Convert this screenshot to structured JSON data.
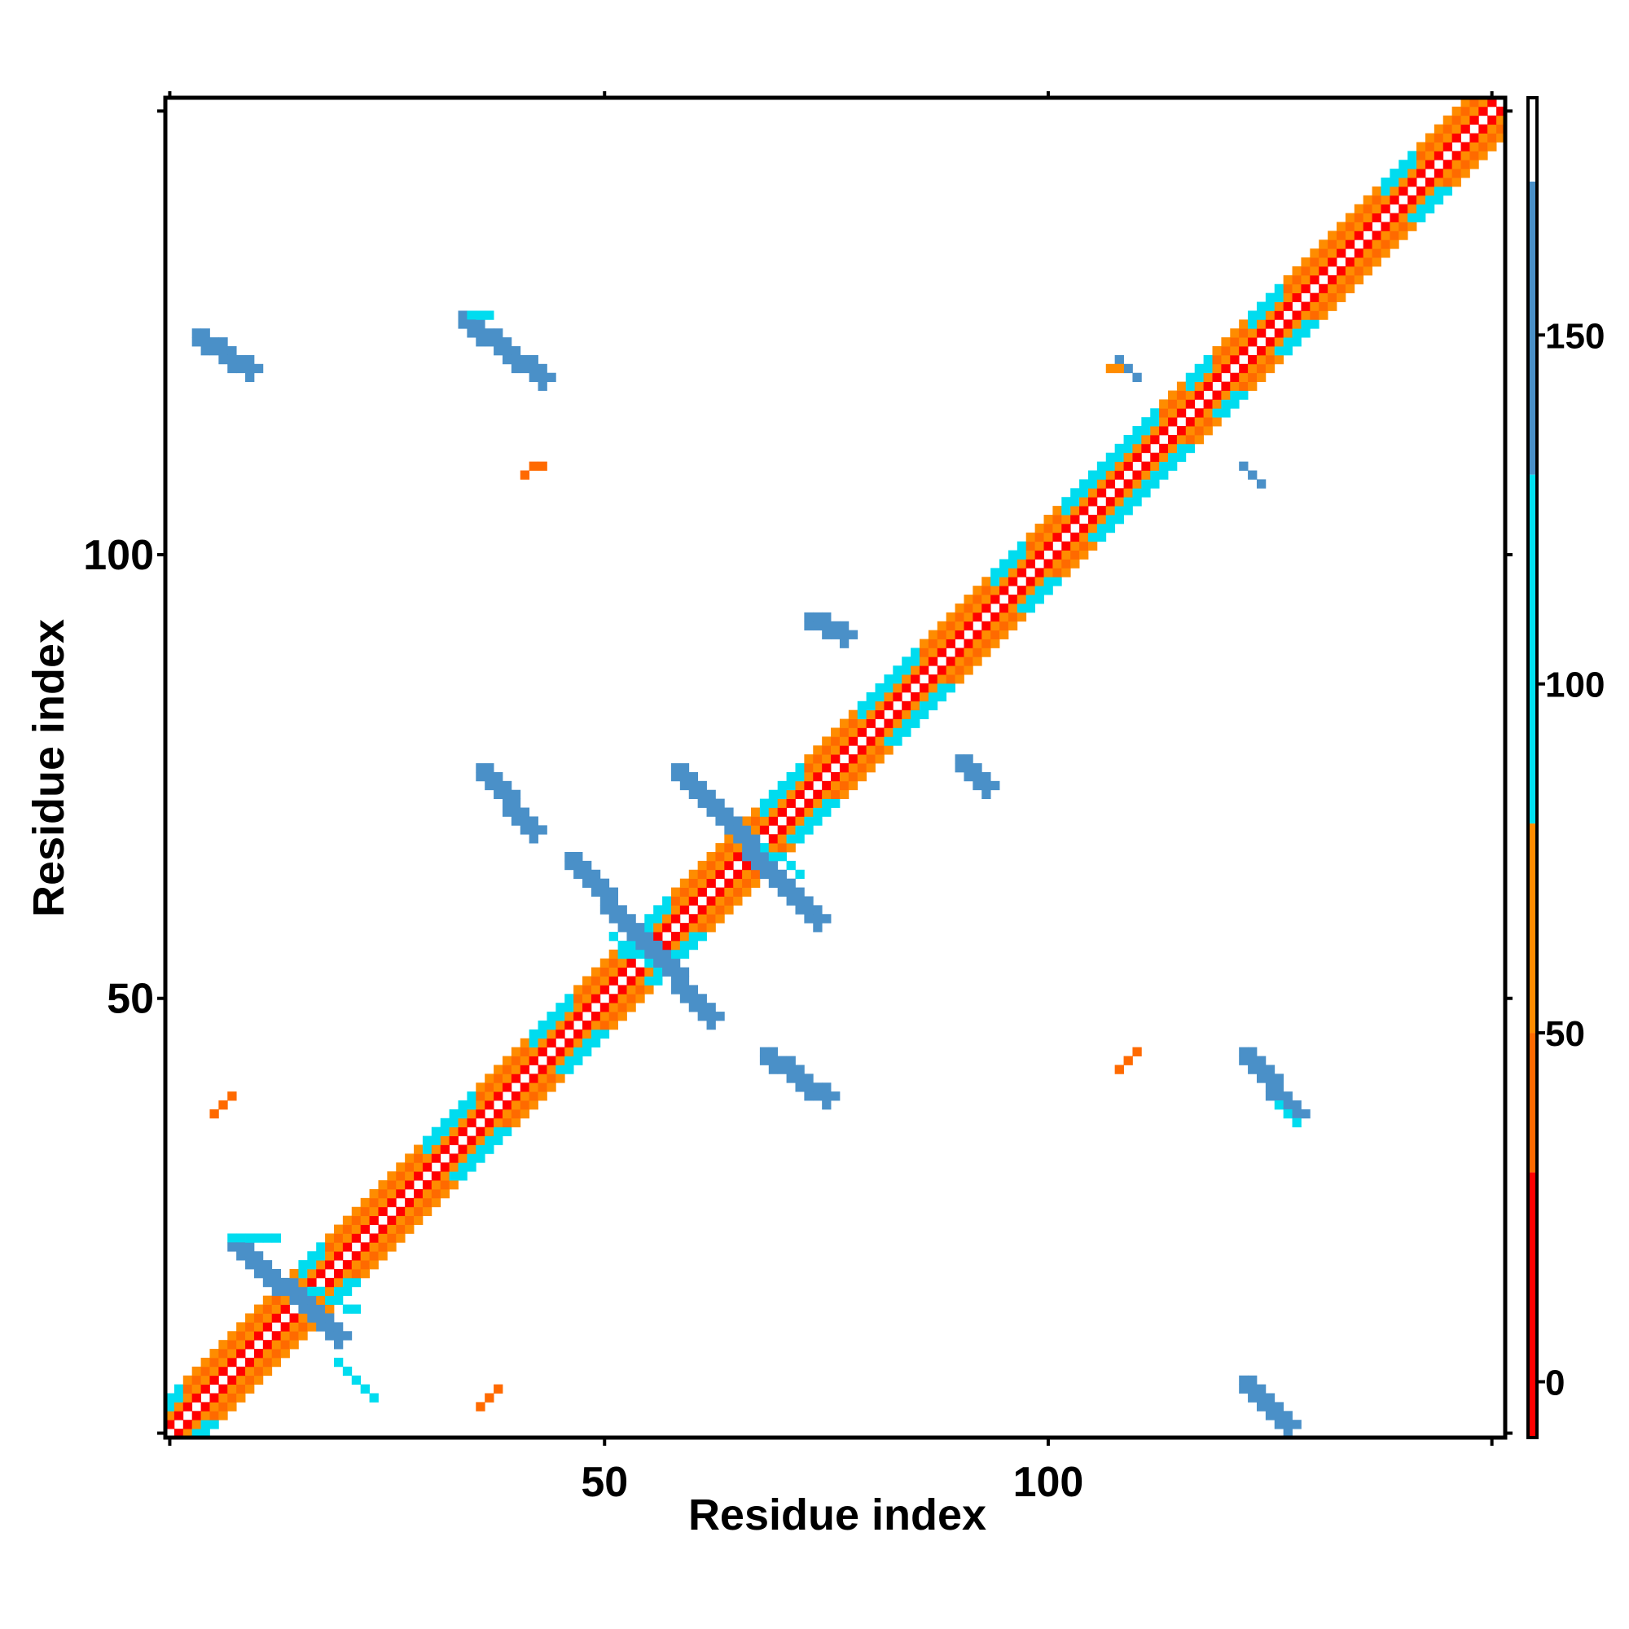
{
  "chart_data": {
    "type": "heatmap",
    "title": "",
    "xlabel": "Residue index",
    "ylabel": "Residue index",
    "n_residues": 151,
    "xlim": [
      0.5,
      151.5
    ],
    "ylim": [
      0.5,
      151.5
    ],
    "x_ticks": [
      50,
      100
    ],
    "y_ticks": [
      50,
      100
    ],
    "x_tick_labels": [
      "50",
      "100"
    ],
    "y_tick_labels": [
      "50",
      "100"
    ],
    "grid": false,
    "legend": "colorbar-right",
    "colorbar": {
      "range": [
        -8,
        184
      ],
      "ticks": [
        0,
        50,
        100,
        150
      ],
      "tick_labels": [
        "0",
        "50",
        "100",
        "150"
      ],
      "bands": [
        {
          "from": -8,
          "to": 30,
          "color": "#ff0000"
        },
        {
          "from": 30,
          "to": 50,
          "color": "#ff6a00"
        },
        {
          "from": 50,
          "to": 80,
          "color": "#ff8c00"
        },
        {
          "from": 80,
          "to": 130,
          "color": "#00e0f0"
        },
        {
          "from": 130,
          "to": 172,
          "color": "#4a90c8"
        },
        {
          "from": 172,
          "to": 184,
          "color": "#ffffff"
        }
      ]
    },
    "color_scale": {
      "red": "#ff0000",
      "dark_orange": "#ff6a00",
      "orange": "#ff8c00",
      "cyan": "#00dcef",
      "steelblue": "#4a90c8",
      "light_blue": "#36b2e0"
    },
    "diagonal_band": {
      "description": "near-diagonal contacts |i-j| <= 4",
      "color_by_distance": {
        "1": "red",
        "2": "orange",
        "3": "dark_orange",
        "4": "orange"
      }
    },
    "segments": [
      {
        "x": [
          4,
          10
        ],
        "y": [
          125,
          121
        ],
        "color": "steelblue"
      },
      {
        "x": [
          34,
          43
        ],
        "y": [
          127,
          120
        ],
        "color": "steelblue"
      },
      {
        "x": [
          35,
          37
        ],
        "y": [
          127,
          127
        ],
        "color": "cyan"
      },
      {
        "x": [
          41,
          43
        ],
        "y": [
          109,
          110
        ],
        "color": "dark_orange"
      },
      {
        "x": [
          108,
          110
        ],
        "y": [
          122,
          120
        ],
        "color": "steelblue"
      },
      {
        "x": [
          107,
          108
        ],
        "y": [
          121,
          121
        ],
        "color": "orange"
      },
      {
        "x": [
          122,
          124
        ],
        "y": [
          110,
          108
        ],
        "color": "steelblue"
      },
      {
        "x": [
          73,
          77
        ],
        "y": [
          93,
          91
        ],
        "color": "steelblue"
      },
      {
        "x": [
          90,
          93
        ],
        "y": [
          77,
          74
        ],
        "color": "steelblue"
      },
      {
        "x": [
          36,
          42
        ],
        "y": [
          76,
          69
        ],
        "color": "steelblue"
      },
      {
        "x": [
          58,
          74
        ],
        "y": [
          76,
          59
        ],
        "color": "steelblue"
      },
      {
        "x": [
          68,
          72
        ],
        "y": [
          67,
          64
        ],
        "color": "cyan"
      },
      {
        "x": [
          46,
          62
        ],
        "y": [
          66,
          48
        ],
        "color": "steelblue"
      },
      {
        "x": [
          51,
          56
        ],
        "y": [
          57,
          53
        ],
        "color": "cyan"
      },
      {
        "x": [
          68,
          75
        ],
        "y": [
          44,
          39
        ],
        "color": "steelblue"
      },
      {
        "x": [
          6,
          8
        ],
        "y": [
          37,
          39
        ],
        "color": "dark_orange"
      },
      {
        "x": [
          108,
          110
        ],
        "y": [
          42,
          44
        ],
        "color": "dark_orange"
      },
      {
        "x": [
          122,
          128
        ],
        "y": [
          44,
          37
        ],
        "color": "steelblue"
      },
      {
        "x": [
          126,
          128
        ],
        "y": [
          38,
          36
        ],
        "color": "cyan"
      },
      {
        "x": [
          8,
          20
        ],
        "y": [
          23,
          12
        ],
        "color": "steelblue"
      },
      {
        "x": [
          8,
          13
        ],
        "y": [
          23,
          23
        ],
        "color": "cyan"
      },
      {
        "x": [
          17,
          22
        ],
        "y": [
          17,
          15
        ],
        "color": "cyan"
      },
      {
        "x": [
          20,
          24
        ],
        "y": [
          9,
          5
        ],
        "color": "cyan"
      },
      {
        "x": [
          36,
          38
        ],
        "y": [
          4,
          6
        ],
        "color": "dark_orange"
      },
      {
        "x": [
          122,
          127
        ],
        "y": [
          7,
          2
        ],
        "color": "steelblue"
      }
    ],
    "diagonal_cyan_regions": [
      [
        1,
        2
      ],
      [
        16,
        18
      ],
      [
        30,
        35
      ],
      [
        42,
        46
      ],
      [
        52,
        57
      ],
      [
        68,
        72
      ],
      [
        79,
        85
      ],
      [
        94,
        97
      ],
      [
        102,
        112
      ],
      [
        116,
        118
      ],
      [
        123,
        126
      ],
      [
        138,
        141
      ]
    ]
  }
}
